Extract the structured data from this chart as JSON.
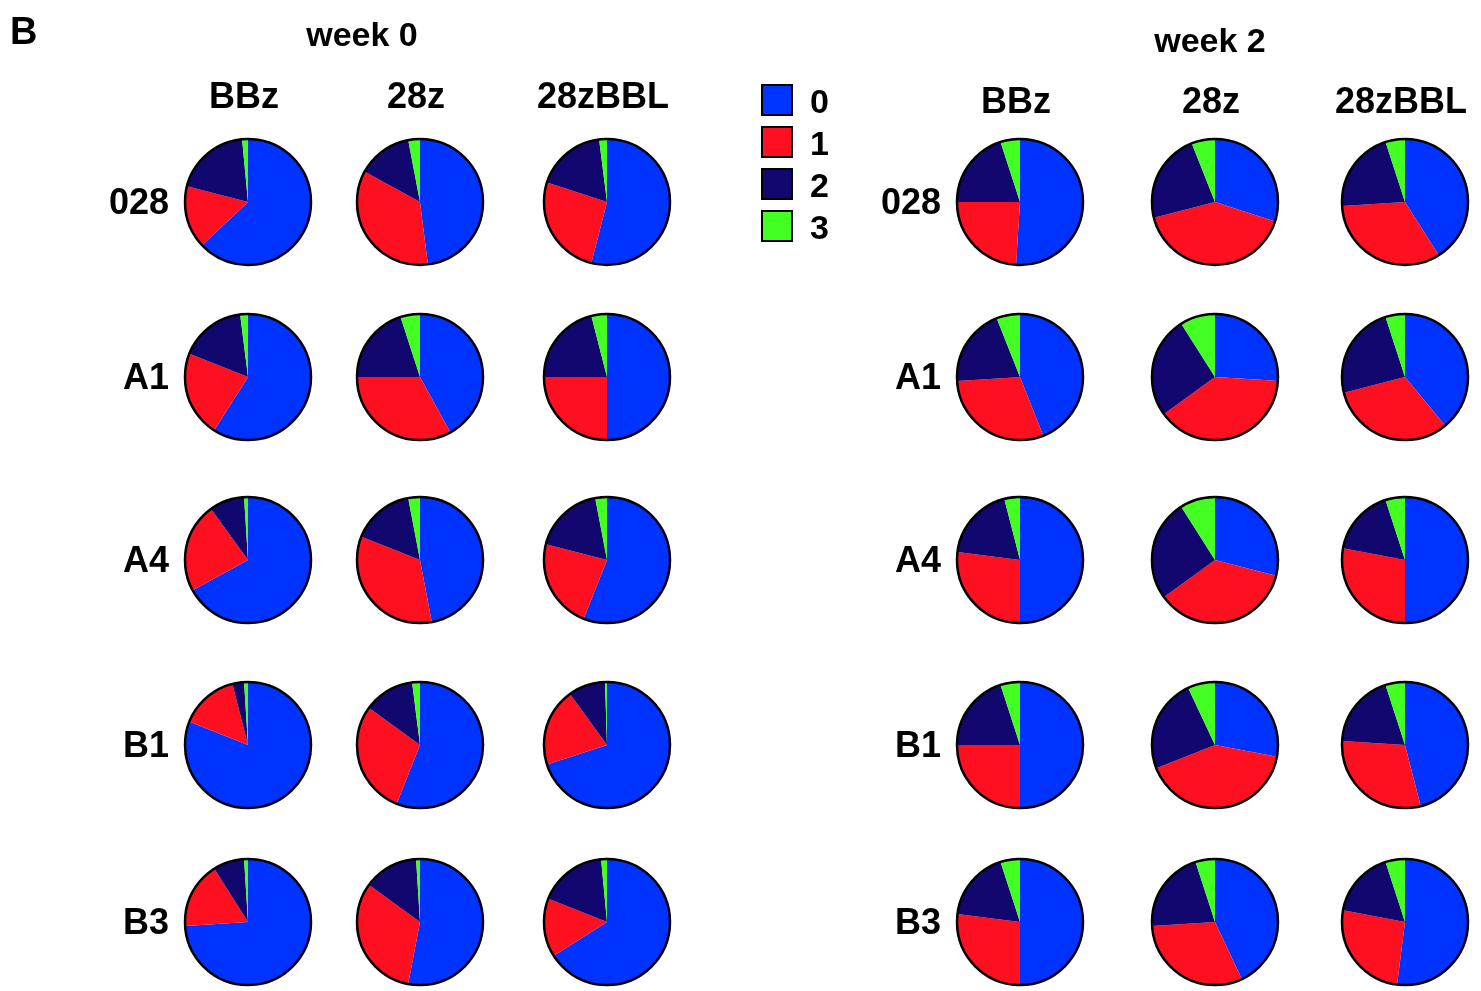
{
  "chart_data": [
    {
      "type": "other",
      "annotations": [
        "B",
        "week 0",
        "week 2"
      ]
    },
    {
      "type": "pie",
      "title": "BBz",
      "ylabel": "028",
      "categories": [
        null,
        null,
        null,
        null
      ],
      "values": [
        63,
        16,
        19.5,
        1.5
      ],
      "colors": [
        "#0033ff",
        "#ff1020",
        "#12076e",
        "#44ff22"
      ]
    },
    {
      "type": "pie",
      "title": "28z",
      "categories": [
        null,
        null,
        null,
        null
      ],
      "values": [
        48,
        35,
        14,
        3
      ],
      "colors": [
        "#0033ff",
        "#ff1020",
        "#12076e",
        "#44ff22"
      ]
    },
    {
      "type": "pie",
      "title": "28zBBL",
      "categories": [
        "0",
        "1",
        "2",
        "3"
      ],
      "values": [
        54,
        26,
        18,
        2
      ],
      "colors": [
        "#0033ff",
        "#ff1020",
        "#12076e",
        "#44ff22"
      ],
      "legend": "right"
    },
    {
      "type": "pie",
      "ylabel": "A1",
      "categories": [
        null,
        null,
        null,
        null
      ],
      "values": [
        59,
        22,
        17,
        2
      ],
      "colors": [
        "#0033ff",
        "#ff1020",
        "#12076e",
        "#44ff22"
      ]
    },
    {
      "type": "pie",
      "categories": [
        null,
        null,
        null,
        null
      ],
      "values": [
        42,
        33,
        20,
        5
      ],
      "colors": [
        "#0033ff",
        "#ff1020",
        "#12076e",
        "#44ff22"
      ]
    },
    {
      "type": "pie",
      "categories": [
        null,
        null,
        null,
        null
      ],
      "values": [
        50,
        25,
        21,
        4
      ],
      "colors": [
        "#0033ff",
        "#ff1020",
        "#12076e",
        "#44ff22"
      ]
    },
    {
      "type": "pie",
      "ylabel": "A4",
      "categories": [
        null,
        null,
        null,
        null
      ],
      "values": [
        67,
        23,
        9,
        1
      ],
      "colors": [
        "#0033ff",
        "#ff1020",
        "#12076e",
        "#44ff22"
      ]
    },
    {
      "type": "pie",
      "categories": [
        null,
        null,
        null,
        null
      ],
      "values": [
        47,
        34,
        16,
        3
      ],
      "colors": [
        "#0033ff",
        "#ff1020",
        "#12076e",
        "#44ff22"
      ]
    },
    {
      "type": "pie",
      "categories": [
        null,
        null,
        null,
        null
      ],
      "values": [
        56,
        23,
        18,
        3
      ],
      "colors": [
        "#0033ff",
        "#ff1020",
        "#12076e",
        "#44ff22"
      ]
    },
    {
      "type": "pie",
      "ylabel": "B1",
      "categories": [
        null,
        null,
        null,
        null
      ],
      "values": [
        81,
        15,
        3,
        1
      ],
      "colors": [
        "#0033ff",
        "#ff1020",
        "#12076e",
        "#44ff22"
      ]
    },
    {
      "type": "pie",
      "categories": [
        null,
        null,
        null,
        null
      ],
      "values": [
        56,
        29,
        13,
        2
      ],
      "colors": [
        "#0033ff",
        "#ff1020",
        "#12076e",
        "#44ff22"
      ]
    },
    {
      "type": "pie",
      "categories": [
        null,
        null,
        null,
        null
      ],
      "values": [
        70,
        20,
        9.5,
        0.5
      ],
      "colors": [
        "#0033ff",
        "#ff1020",
        "#12076e",
        "#44ff22"
      ]
    },
    {
      "type": "pie",
      "ylabel": "B3",
      "categories": [
        null,
        null,
        null,
        null
      ],
      "values": [
        74,
        17,
        8,
        1
      ],
      "colors": [
        "#0033ff",
        "#ff1020",
        "#12076e",
        "#44ff22"
      ]
    },
    {
      "type": "pie",
      "categories": [
        null,
        null,
        null,
        null
      ],
      "values": [
        53,
        32,
        14,
        1
      ],
      "colors": [
        "#0033ff",
        "#ff1020",
        "#12076e",
        "#44ff22"
      ]
    },
    {
      "type": "pie",
      "categories": [
        null,
        null,
        null,
        null
      ],
      "values": [
        66,
        15,
        17.5,
        1.5
      ],
      "colors": [
        "#0033ff",
        "#ff1020",
        "#12076e",
        "#44ff22"
      ]
    },
    {
      "type": "pie",
      "title": "BBz",
      "ylabel": "028",
      "categories": [
        null,
        null,
        null,
        null
      ],
      "values": [
        51,
        24,
        20,
        5
      ],
      "colors": [
        "#0033ff",
        "#ff1020",
        "#12076e",
        "#44ff22"
      ]
    },
    {
      "type": "pie",
      "title": "28z",
      "categories": [
        null,
        null,
        null,
        null
      ],
      "values": [
        30,
        41,
        23,
        6
      ],
      "colors": [
        "#0033ff",
        "#ff1020",
        "#12076e",
        "#44ff22"
      ]
    },
    {
      "type": "pie",
      "title": "28zBBL",
      "categories": [
        null,
        null,
        null,
        null
      ],
      "values": [
        41,
        33,
        21,
        5
      ],
      "colors": [
        "#0033ff",
        "#ff1020",
        "#12076e",
        "#44ff22"
      ]
    },
    {
      "type": "pie",
      "ylabel": "A1",
      "categories": [
        null,
        null,
        null,
        null
      ],
      "values": [
        44,
        30,
        20,
        6
      ],
      "colors": [
        "#0033ff",
        "#ff1020",
        "#12076e",
        "#44ff22"
      ]
    },
    {
      "type": "pie",
      "categories": [
        null,
        null,
        null,
        null
      ],
      "values": [
        26,
        39,
        26,
        9
      ],
      "colors": [
        "#0033ff",
        "#ff1020",
        "#12076e",
        "#44ff22"
      ]
    },
    {
      "type": "pie",
      "categories": [
        null,
        null,
        null,
        null
      ],
      "values": [
        39,
        32,
        24,
        5
      ],
      "colors": [
        "#0033ff",
        "#ff1020",
        "#12076e",
        "#44ff22"
      ]
    },
    {
      "type": "pie",
      "ylabel": "A4",
      "categories": [
        null,
        null,
        null,
        null
      ],
      "values": [
        50,
        27,
        19,
        4
      ],
      "colors": [
        "#0033ff",
        "#ff1020",
        "#12076e",
        "#44ff22"
      ]
    },
    {
      "type": "pie",
      "categories": [
        null,
        null,
        null,
        null
      ],
      "values": [
        29,
        36,
        26,
        9
      ],
      "colors": [
        "#0033ff",
        "#ff1020",
        "#12076e",
        "#44ff22"
      ]
    },
    {
      "type": "pie",
      "categories": [
        null,
        null,
        null,
        null
      ],
      "values": [
        50,
        28,
        17,
        5
      ],
      "colors": [
        "#0033ff",
        "#ff1020",
        "#12076e",
        "#44ff22"
      ]
    },
    {
      "type": "pie",
      "ylabel": "B1",
      "categories": [
        null,
        null,
        null,
        null
      ],
      "values": [
        50,
        25,
        20,
        5
      ],
      "colors": [
        "#0033ff",
        "#ff1020",
        "#12076e",
        "#44ff22"
      ]
    },
    {
      "type": "pie",
      "categories": [
        null,
        null,
        null,
        null
      ],
      "values": [
        28,
        41,
        24,
        7
      ],
      "colors": [
        "#0033ff",
        "#ff1020",
        "#12076e",
        "#44ff22"
      ]
    },
    {
      "type": "pie",
      "categories": [
        null,
        null,
        null,
        null
      ],
      "values": [
        46,
        30,
        19,
        5
      ],
      "colors": [
        "#0033ff",
        "#ff1020",
        "#12076e",
        "#44ff22"
      ]
    },
    {
      "type": "pie",
      "ylabel": "B3",
      "categories": [
        null,
        null,
        null,
        null
      ],
      "values": [
        50,
        27,
        18,
        5
      ],
      "colors": [
        "#0033ff",
        "#ff1020",
        "#12076e",
        "#44ff22"
      ]
    },
    {
      "type": "pie",
      "categories": [
        null,
        null,
        null,
        null
      ],
      "values": [
        43,
        31,
        21,
        5
      ],
      "colors": [
        "#0033ff",
        "#ff1020",
        "#12076e",
        "#44ff22"
      ]
    },
    {
      "type": "pie",
      "categories": [
        null,
        null,
        null,
        null
      ],
      "values": [
        52,
        26,
        17,
        5
      ],
      "colors": [
        "#0033ff",
        "#ff1020",
        "#12076e",
        "#44ff22"
      ]
    }
  ]
}
